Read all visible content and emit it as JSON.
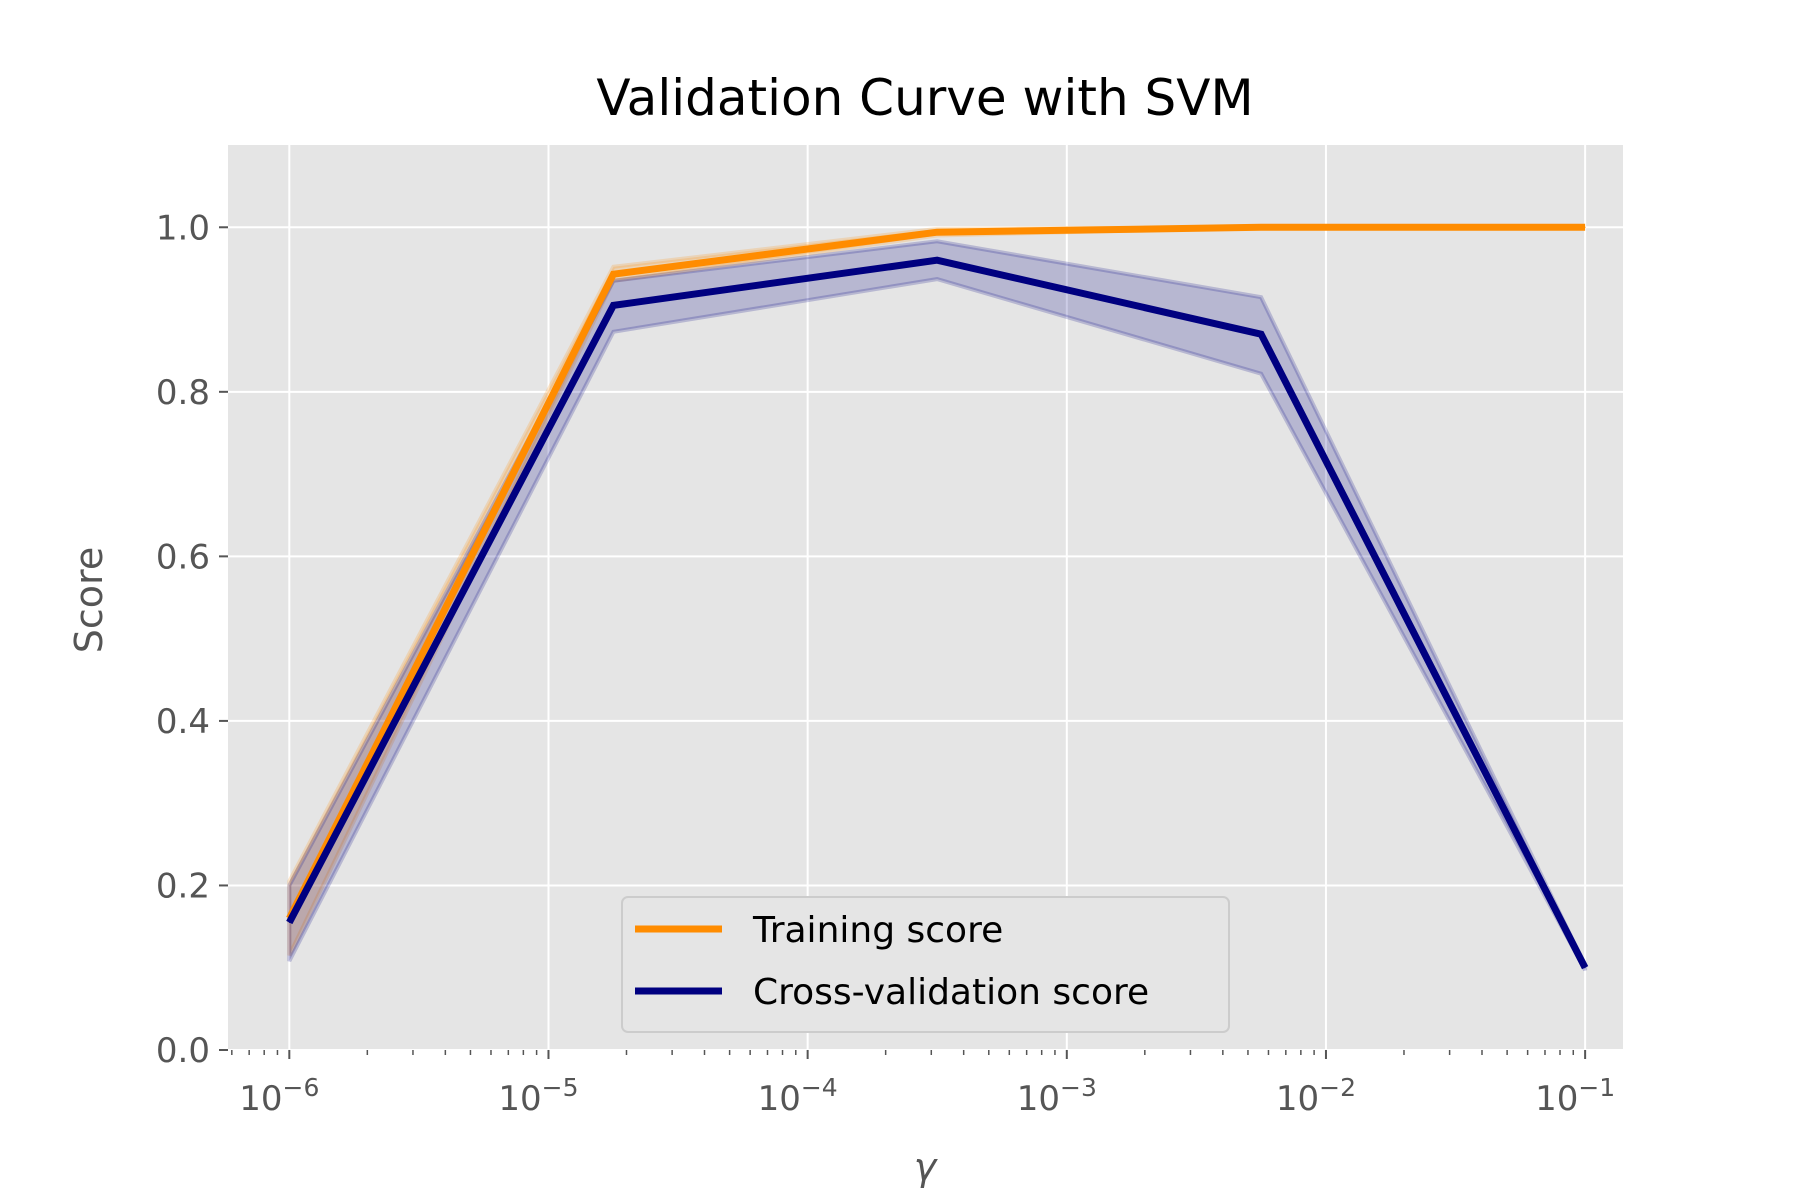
{
  "chart_data": {
    "type": "line",
    "title": "Validation Curve with SVM",
    "xlabel": "γ",
    "ylabel": "Score",
    "xscale": "log",
    "xlim": [
      5.8e-07,
      0.14
    ],
    "ylim": [
      0.0,
      1.1
    ],
    "grid": true,
    "x": [
      1e-06,
      1.78e-05,
      0.000316,
      0.00562,
      0.1
    ],
    "xticks": [
      {
        "value": 1e-06,
        "base": "10",
        "exp": "−6"
      },
      {
        "value": 1e-05,
        "base": "10",
        "exp": "−5"
      },
      {
        "value": 0.0001,
        "base": "10",
        "exp": "−4"
      },
      {
        "value": 0.001,
        "base": "10",
        "exp": "−3"
      },
      {
        "value": 0.01,
        "base": "10",
        "exp": "−2"
      },
      {
        "value": 0.1,
        "base": "10",
        "exp": "−1"
      }
    ],
    "yticks": [
      {
        "value": 0.0,
        "label": "0.0"
      },
      {
        "value": 0.2,
        "label": "0.2"
      },
      {
        "value": 0.4,
        "label": "0.4"
      },
      {
        "value": 0.6,
        "label": "0.6"
      },
      {
        "value": 0.8,
        "label": "0.8"
      },
      {
        "value": 1.0,
        "label": "1.0"
      }
    ],
    "legend_position": "lower-center",
    "series": [
      {
        "name": "Training score",
        "color": "#ff8c00",
        "values": [
          0.16,
          0.943,
          0.994,
          1.0,
          1.0
        ],
        "lower": [
          0.115,
          0.935,
          0.99,
          1.0,
          1.0
        ],
        "upper": [
          0.205,
          0.952,
          0.998,
          1.0,
          1.0
        ]
      },
      {
        "name": "Cross-validation score",
        "color": "#000080",
        "values": [
          0.155,
          0.905,
          0.96,
          0.87,
          0.1
        ],
        "lower": [
          0.108,
          0.873,
          0.937,
          0.822,
          0.097
        ],
        "upper": [
          0.2,
          0.935,
          0.983,
          0.915,
          0.103
        ]
      }
    ]
  }
}
